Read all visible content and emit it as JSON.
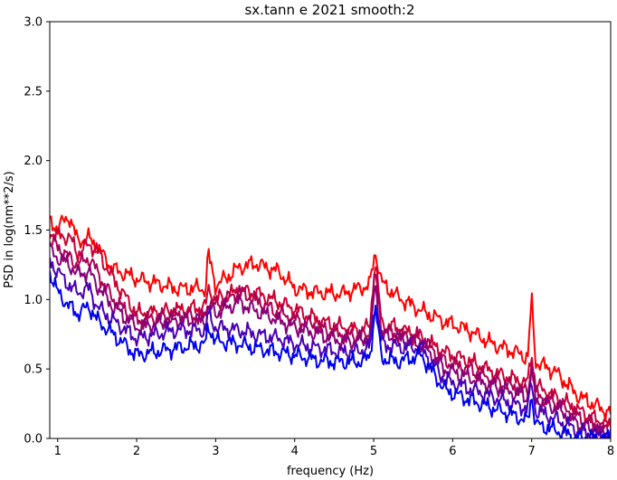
{
  "chart_data": {
    "type": "line",
    "title": "sx.tann e 2021 smooth:2",
    "xlabel": "frequency (Hz)",
    "ylabel": "PSD in log(nm**2/s)",
    "xlim": [
      0.9,
      8.0
    ],
    "ylim": [
      0.0,
      3.0
    ],
    "xticks": [
      "1",
      "2",
      "3",
      "4",
      "5",
      "6",
      "7",
      "8"
    ],
    "yticks": [
      "0.0",
      "0.5",
      "1.0",
      "1.5",
      "2.0",
      "2.5",
      "3.0"
    ],
    "grid": false,
    "legend": "none",
    "colors": [
      "#ff0000",
      "#cc0033",
      "#aa0055",
      "#880077",
      "#4a00b5",
      "#0000ee"
    ],
    "series": [
      {
        "x": [
          0.9,
          1.0,
          1.15,
          1.25,
          1.4,
          1.5,
          1.7,
          2.0,
          2.5,
          2.88,
          2.9,
          3.0,
          3.3,
          3.5,
          3.8,
          4.0,
          4.3,
          4.6,
          4.8,
          4.95,
          5.02,
          5.1,
          5.3,
          5.6,
          5.9,
          6.2,
          6.5,
          6.8,
          6.95,
          7.0,
          7.05,
          7.3,
          7.6,
          8.0
        ],
        "values": [
          1.55,
          1.52,
          1.6,
          1.42,
          1.44,
          1.38,
          1.22,
          1.15,
          1.08,
          1.08,
          1.34,
          1.1,
          1.23,
          1.26,
          1.2,
          1.08,
          1.05,
          1.04,
          1.08,
          1.1,
          1.35,
          1.12,
          1.02,
          0.92,
          0.84,
          0.78,
          0.68,
          0.62,
          0.58,
          1.0,
          0.55,
          0.48,
          0.3,
          0.18
        ]
      },
      {
        "x": [
          0.9,
          1.0,
          1.15,
          1.25,
          1.4,
          1.5,
          1.7,
          2.0,
          2.5,
          2.88,
          2.9,
          3.0,
          3.3,
          3.5,
          3.8,
          4.0,
          4.3,
          4.6,
          4.8,
          4.95,
          5.02,
          5.1,
          5.3,
          5.6,
          5.9,
          6.2,
          6.5,
          6.8,
          6.95,
          7.0,
          7.05,
          7.3,
          7.6,
          8.0
        ],
        "values": [
          1.49,
          1.46,
          1.45,
          1.33,
          1.4,
          1.35,
          1.15,
          0.9,
          0.92,
          0.95,
          1.08,
          1.0,
          1.06,
          1.05,
          0.98,
          0.93,
          0.85,
          0.8,
          0.78,
          0.8,
          1.3,
          0.82,
          0.8,
          0.72,
          0.62,
          0.56,
          0.48,
          0.42,
          0.4,
          0.62,
          0.38,
          0.3,
          0.2,
          0.08
        ]
      },
      {
        "x": [
          0.9,
          1.0,
          1.15,
          1.25,
          1.4,
          1.5,
          1.7,
          2.0,
          2.5,
          2.88,
          2.9,
          3.0,
          3.3,
          3.5,
          3.8,
          4.0,
          4.3,
          4.6,
          4.8,
          4.95,
          5.02,
          5.1,
          5.3,
          5.6,
          5.9,
          6.2,
          6.5,
          6.8,
          6.95,
          7.0,
          7.05,
          7.3,
          7.6,
          8.0
        ],
        "values": [
          1.42,
          1.38,
          1.3,
          1.25,
          1.3,
          1.2,
          1.0,
          0.85,
          0.88,
          0.88,
          1.0,
          0.95,
          1.06,
          1.0,
          0.9,
          0.86,
          0.8,
          0.75,
          0.73,
          0.75,
          1.2,
          0.78,
          0.75,
          0.72,
          0.55,
          0.5,
          0.42,
          0.36,
          0.34,
          0.55,
          0.32,
          0.26,
          0.15,
          0.05
        ]
      },
      {
        "x": [
          0.9,
          1.0,
          1.15,
          1.25,
          1.4,
          1.5,
          1.7,
          2.0,
          2.5,
          2.88,
          2.9,
          3.0,
          3.3,
          3.5,
          3.8,
          4.0,
          4.3,
          4.6,
          4.8,
          4.95,
          5.02,
          5.1,
          5.3,
          5.6,
          5.9,
          6.2,
          6.5,
          6.8,
          6.95,
          7.0,
          7.05,
          7.3,
          7.6,
          8.0
        ],
        "values": [
          1.35,
          1.3,
          1.25,
          1.18,
          1.2,
          1.1,
          0.95,
          0.8,
          0.85,
          0.85,
          0.95,
          0.9,
          0.98,
          0.92,
          0.85,
          0.8,
          0.75,
          0.7,
          0.7,
          0.72,
          1.1,
          0.75,
          0.72,
          0.68,
          0.5,
          0.44,
          0.38,
          0.32,
          0.3,
          0.48,
          0.28,
          0.22,
          0.1,
          0.02
        ]
      },
      {
        "x": [
          0.9,
          1.0,
          1.15,
          1.25,
          1.4,
          1.5,
          1.7,
          2.0,
          2.5,
          2.88,
          2.9,
          3.0,
          3.3,
          3.5,
          3.8,
          4.0,
          4.3,
          4.6,
          4.8,
          4.95,
          5.02,
          5.1,
          5.3,
          5.6,
          5.9,
          6.2,
          6.5,
          6.8,
          6.95,
          7.0,
          7.05,
          7.3,
          7.6,
          8.0
        ],
        "values": [
          1.28,
          1.2,
          1.1,
          1.05,
          1.08,
          0.95,
          0.85,
          0.72,
          0.78,
          0.78,
          0.9,
          0.8,
          0.78,
          0.75,
          0.72,
          0.68,
          0.65,
          0.62,
          0.63,
          0.65,
          1.0,
          0.68,
          0.66,
          0.65,
          0.42,
          0.36,
          0.3,
          0.24,
          0.22,
          0.4,
          0.2,
          0.14,
          0.05,
          0.0
        ]
      },
      {
        "x": [
          0.9,
          1.0,
          1.15,
          1.25,
          1.4,
          1.5,
          1.7,
          2.0,
          2.5,
          2.88,
          2.9,
          3.0,
          3.3,
          3.5,
          3.8,
          4.0,
          4.3,
          4.6,
          4.8,
          4.95,
          5.02,
          5.1,
          5.3,
          5.6,
          5.9,
          6.2,
          6.5,
          6.8,
          6.95,
          7.0,
          7.05,
          7.3,
          7.6,
          8.0
        ],
        "values": [
          1.2,
          1.05,
          0.95,
          0.9,
          0.95,
          0.85,
          0.75,
          0.6,
          0.65,
          0.68,
          0.82,
          0.7,
          0.68,
          0.65,
          0.62,
          0.6,
          0.56,
          0.55,
          0.55,
          0.58,
          0.95,
          0.58,
          0.55,
          0.6,
          0.35,
          0.28,
          0.22,
          0.16,
          0.12,
          0.32,
          0.1,
          0.06,
          0.0,
          0.0
        ]
      }
    ]
  }
}
